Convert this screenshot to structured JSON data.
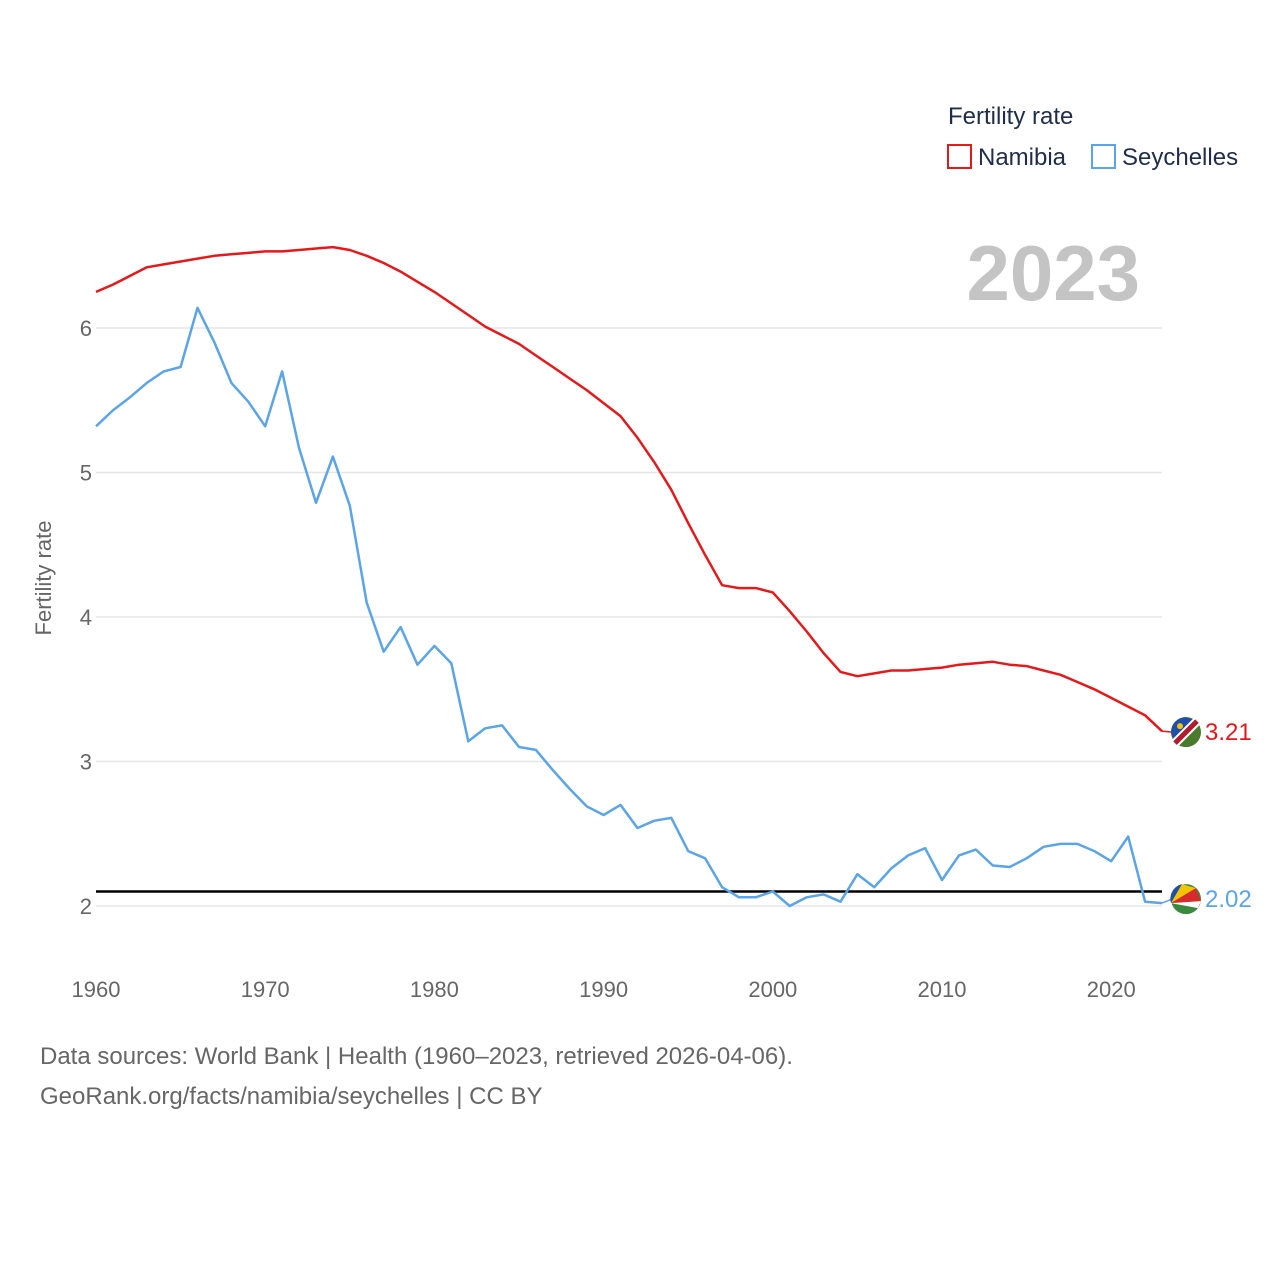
{
  "chart_data": {
    "type": "line",
    "title": "",
    "xlabel": "",
    "ylabel": "Fertility rate",
    "xlim": [
      1960,
      2023
    ],
    "ylim": [
      1.6,
      6.8
    ],
    "x_ticks": [
      1960,
      1970,
      1980,
      1990,
      2000,
      2010,
      2020
    ],
    "y_ticks": [
      2,
      3,
      4,
      5,
      6
    ],
    "grid": true,
    "legend_title": "Fertility rate",
    "legend_position": "top-right",
    "year_label": "2023",
    "reference_line": {
      "y": 2.1,
      "color": "#000000"
    },
    "series": [
      {
        "name": "Namibia",
        "color": "#e31a1c",
        "end_label": "3.21",
        "x": [
          1960,
          1961,
          1962,
          1963,
          1964,
          1965,
          1966,
          1967,
          1968,
          1969,
          1970,
          1971,
          1972,
          1973,
          1974,
          1975,
          1976,
          1977,
          1978,
          1979,
          1980,
          1981,
          1982,
          1983,
          1984,
          1985,
          1986,
          1987,
          1988,
          1989,
          1990,
          1991,
          1992,
          1993,
          1994,
          1995,
          1996,
          1997,
          1998,
          1999,
          2000,
          2001,
          2002,
          2003,
          2004,
          2005,
          2006,
          2007,
          2008,
          2009,
          2010,
          2011,
          2012,
          2013,
          2014,
          2015,
          2016,
          2017,
          2018,
          2019,
          2020,
          2021,
          2022,
          2023
        ],
        "values": [
          6.25,
          6.3,
          6.36,
          6.42,
          6.44,
          6.46,
          6.48,
          6.5,
          6.51,
          6.52,
          6.53,
          6.53,
          6.54,
          6.55,
          6.56,
          6.54,
          6.5,
          6.45,
          6.39,
          6.32,
          6.25,
          6.17,
          6.09,
          6.01,
          5.95,
          5.89,
          5.81,
          5.73,
          5.65,
          5.57,
          5.48,
          5.39,
          5.24,
          5.07,
          4.88,
          4.65,
          4.43,
          4.22,
          4.2,
          4.2,
          4.17,
          4.04,
          3.9,
          3.75,
          3.62,
          3.59,
          3.61,
          3.63,
          3.63,
          3.64,
          3.65,
          3.67,
          3.68,
          3.69,
          3.67,
          3.66,
          3.63,
          3.6,
          3.55,
          3.5,
          3.44,
          3.38,
          3.32,
          3.21
        ]
      },
      {
        "name": "Seychelles",
        "color": "#5ba4e6",
        "end_label": "2.02",
        "x": [
          1960,
          1961,
          1962,
          1963,
          1964,
          1965,
          1966,
          1967,
          1968,
          1969,
          1970,
          1971,
          1972,
          1973,
          1974,
          1975,
          1976,
          1977,
          1978,
          1979,
          1980,
          1981,
          1982,
          1983,
          1984,
          1985,
          1986,
          1987,
          1988,
          1989,
          1990,
          1991,
          1992,
          1993,
          1994,
          1995,
          1996,
          1997,
          1998,
          1999,
          2000,
          2001,
          2002,
          2003,
          2004,
          2005,
          2006,
          2007,
          2008,
          2009,
          2010,
          2011,
          2012,
          2013,
          2014,
          2015,
          2016,
          2017,
          2018,
          2019,
          2020,
          2021,
          2022,
          2023
        ],
        "values": [
          5.32,
          5.43,
          5.52,
          5.62,
          5.7,
          5.73,
          6.14,
          5.9,
          5.62,
          5.49,
          5.32,
          5.7,
          5.17,
          4.79,
          5.11,
          4.77,
          4.1,
          3.76,
          3.93,
          3.67,
          3.8,
          3.68,
          3.14,
          3.23,
          3.25,
          3.1,
          3.08,
          2.94,
          2.81,
          2.69,
          2.63,
          2.7,
          2.54,
          2.59,
          2.61,
          2.38,
          2.33,
          2.13,
          2.06,
          2.06,
          2.1,
          2.0,
          2.06,
          2.08,
          2.03,
          2.22,
          2.13,
          2.26,
          2.35,
          2.4,
          2.18,
          2.35,
          2.39,
          2.28,
          2.27,
          2.33,
          2.41,
          2.43,
          2.43,
          2.38,
          2.31,
          2.48,
          2.03,
          2.02
        ]
      }
    ]
  },
  "source_line1": "Data sources: World Bank | Health (1960–2023, retrieved 2026-04-06).",
  "source_line2": "GeoRank.org/facts/namibia/seychelles | CC BY"
}
